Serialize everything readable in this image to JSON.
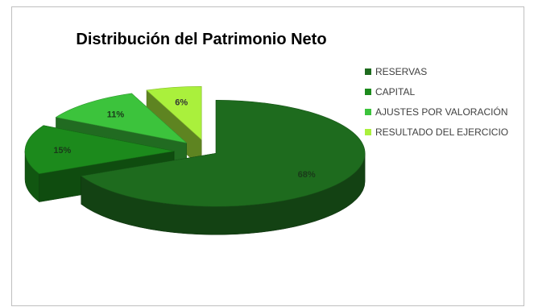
{
  "chart_data": {
    "type": "pie",
    "title": "Distribución del Patrimonio Neto",
    "categories": [
      "RESERVAS",
      "CAPITAL",
      "AJUSTES POR VALORACIÓN",
      "RESULTADO DEL EJERCICIO"
    ],
    "values": [
      68,
      15,
      11,
      6
    ],
    "labels": [
      "68%",
      "15%",
      "11%",
      "6%"
    ],
    "colors": [
      "#1e6b1e",
      "#1c8a1c",
      "#3cc33c",
      "#aaf03c"
    ],
    "exploded": true,
    "style": "3d",
    "legend_position": "right"
  }
}
